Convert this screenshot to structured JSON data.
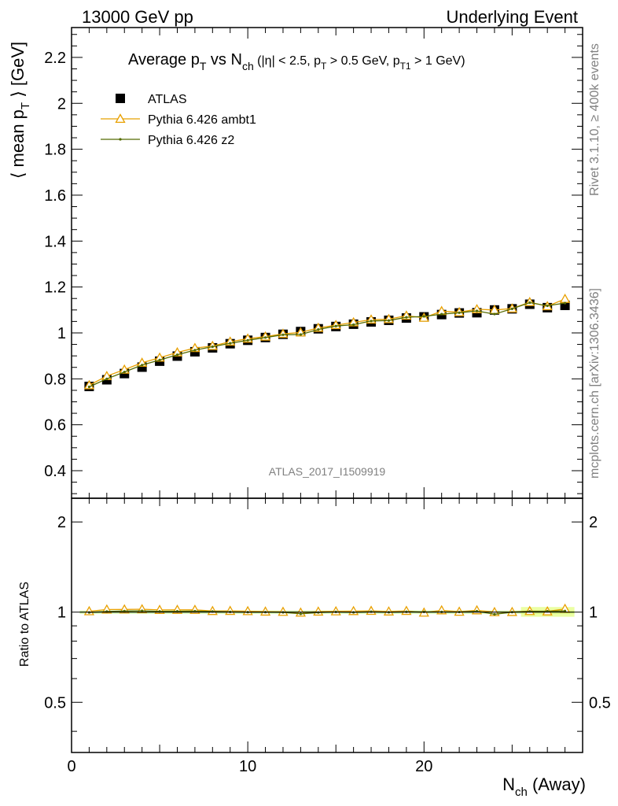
{
  "header": {
    "left": "13000 GeV pp",
    "right": "Underlying Event"
  },
  "side_labels": {
    "rivet": "Rivet 3.1.10, ≥ 400k events",
    "mcplots": "mcplots.cern.ch [arXiv:1306.3436]"
  },
  "title": {
    "prefix": "Average p",
    "sub1": "T",
    "mid": " vs N",
    "sub2": "ch",
    "cuts_a": " (|η| < 2.5, p",
    "sub3": "T",
    "cuts_b": " > 0.5 GeV, p",
    "sub4": "T1",
    "cuts_c": " > 1 GeV)"
  },
  "watermark": "ATLAS_2017_I1509919",
  "axes": {
    "ylabel_main": "⟨ mean p",
    "ylabel_main_sub": "T",
    "ylabel_main_end": " ⟩ [GeV]",
    "ylabel_ratio": "Ratio to ATLAS",
    "xlabel": "N",
    "xlabel_sub": "ch",
    "xlabel_end": " (Away)"
  },
  "legend": [
    {
      "label": "ATLAS",
      "color": "#000000",
      "marker": "square"
    },
    {
      "label": "Pythia 6.426 ambt1",
      "color": "#e8a000",
      "marker": "triangle"
    },
    {
      "label": "Pythia 6.426 z2",
      "color": "#556b00",
      "marker": "dot"
    }
  ],
  "chart_data": {
    "type": "scatter",
    "x": [
      1,
      2,
      3,
      4,
      5,
      6,
      7,
      8,
      9,
      10,
      11,
      12,
      13,
      14,
      15,
      16,
      17,
      18,
      19,
      20,
      21,
      22,
      23,
      24,
      25,
      26,
      27,
      28
    ],
    "xlim": [
      0,
      29
    ],
    "main_ylim": [
      0.28,
      2.33
    ],
    "main_yticks": [
      0.4,
      0.6,
      0.8,
      1,
      1.2,
      1.4,
      1.6,
      1.8,
      2,
      2.2
    ],
    "xticks": [
      0,
      10,
      20
    ],
    "ratio_ylim": [
      0.34,
      2.4
    ],
    "ratio_yticks": [
      0.5,
      1,
      2
    ],
    "ratio_log": true,
    "series": [
      {
        "name": "ATLAS",
        "color": "#000000",
        "values": [
          0.767,
          0.796,
          0.823,
          0.851,
          0.877,
          0.899,
          0.918,
          0.935,
          0.953,
          0.968,
          0.98,
          0.994,
          1.006,
          1.018,
          1.028,
          1.038,
          1.048,
          1.055,
          1.065,
          1.07,
          1.08,
          1.087,
          1.088,
          1.1,
          1.105,
          1.125,
          1.11,
          1.12
        ]
      },
      {
        "name": "Pythia 6.426 ambt1",
        "color": "#e8a000",
        "values": [
          0.772,
          0.812,
          0.84,
          0.87,
          0.892,
          0.915,
          0.934,
          0.943,
          0.962,
          0.975,
          0.984,
          0.996,
          1.002,
          1.022,
          1.034,
          1.046,
          1.058,
          1.06,
          1.075,
          1.066,
          1.095,
          1.09,
          1.103,
          1.1,
          1.106,
          1.134,
          1.116,
          1.148
        ]
      },
      {
        "name": "Pythia 6.426 z2",
        "color": "#556b00",
        "values": [
          0.765,
          0.8,
          0.83,
          0.86,
          0.882,
          0.905,
          0.925,
          0.94,
          0.955,
          0.968,
          0.98,
          0.992,
          0.993,
          1.015,
          1.03,
          1.036,
          1.052,
          1.054,
          1.068,
          1.072,
          1.082,
          1.088,
          1.096,
          1.082,
          1.105,
          1.132,
          1.118,
          1.13
        ]
      }
    ]
  }
}
